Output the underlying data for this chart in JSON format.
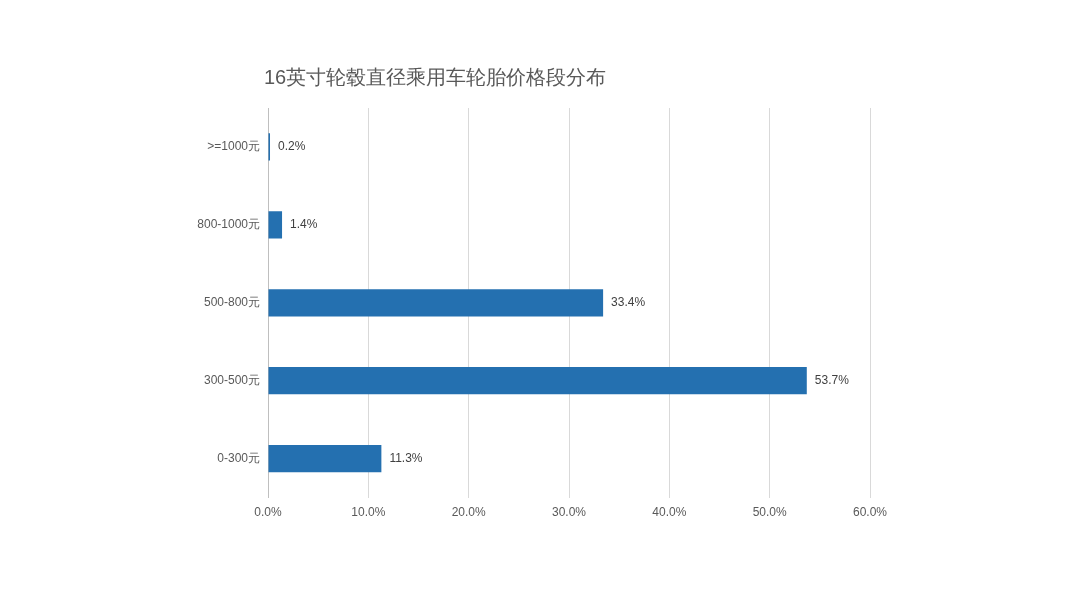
{
  "chart_data": {
    "type": "bar",
    "orientation": "horizontal",
    "title": "16英寸轮毂直径乘用车轮胎价格段分布",
    "categories": [
      ">=1000元",
      "800-1000元",
      "500-800元",
      "300-500元",
      "0-300元"
    ],
    "values": [
      0.2,
      1.4,
      33.4,
      53.7,
      11.3
    ],
    "value_labels": [
      "0.2%",
      "1.4%",
      "33.4%",
      "53.7%",
      "11.3%"
    ],
    "color": "#2470b0",
    "xlim": [
      0,
      60
    ],
    "xticks": [
      {
        "value": 0,
        "label": "0.0%"
      },
      {
        "value": 10,
        "label": "10.0%"
      },
      {
        "value": 20,
        "label": "20.0%"
      },
      {
        "value": 30,
        "label": "30.0%"
      },
      {
        "value": 40,
        "label": "40.0%"
      },
      {
        "value": 50,
        "label": "50.0%"
      },
      {
        "value": 60,
        "label": "60.0%"
      }
    ],
    "grid": "x",
    "legend": false
  }
}
